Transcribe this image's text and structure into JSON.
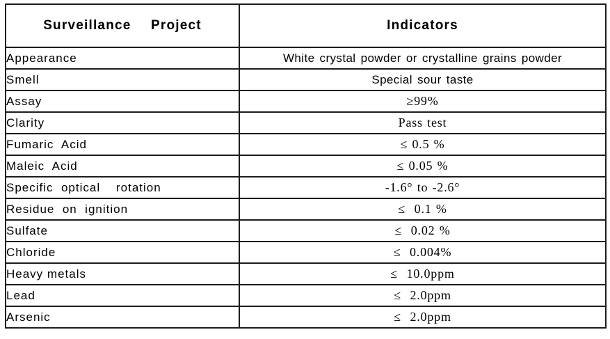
{
  "document": {
    "background_color": "#ffffff",
    "grid_color": "#1c1c1c",
    "text_color": "#000000"
  },
  "table": {
    "headers": {
      "project": "Surveillance   Project",
      "indicators": "Indicators"
    },
    "rows": [
      {
        "project": "Appearance",
        "indicator": "White crystal powder or crystalline grains powder"
      },
      {
        "project": "Smell",
        "indicator": "Special sour taste"
      },
      {
        "project": "Assay",
        "indicator": "≥99%"
      },
      {
        "project": "Clarity",
        "indicator": "Pass test"
      },
      {
        "project": "Fumaric  Acid",
        "indicator": "≤ 0.5 %"
      },
      {
        "project": "Maleic  Acid",
        "indicator": "≤ 0.05 %"
      },
      {
        "project": "Specific  optical    rotation",
        "indicator": "-1.6° to -2.6°"
      },
      {
        "project": "Residue  on  ignition",
        "indicator": "≤  0.1 %"
      },
      {
        "project": "Sulfate",
        "indicator": "≤  0.02 %"
      },
      {
        "project": "Chloride",
        "indicator": "≤  0.004%"
      },
      {
        "project": "Heavy metals",
        "indicator": "≤  10.0ppm"
      },
      {
        "project": "Lead",
        "indicator": "≤  2.0ppm"
      },
      {
        "project": "Arsenic",
        "indicator": "≤  2.0ppm"
      }
    ]
  }
}
